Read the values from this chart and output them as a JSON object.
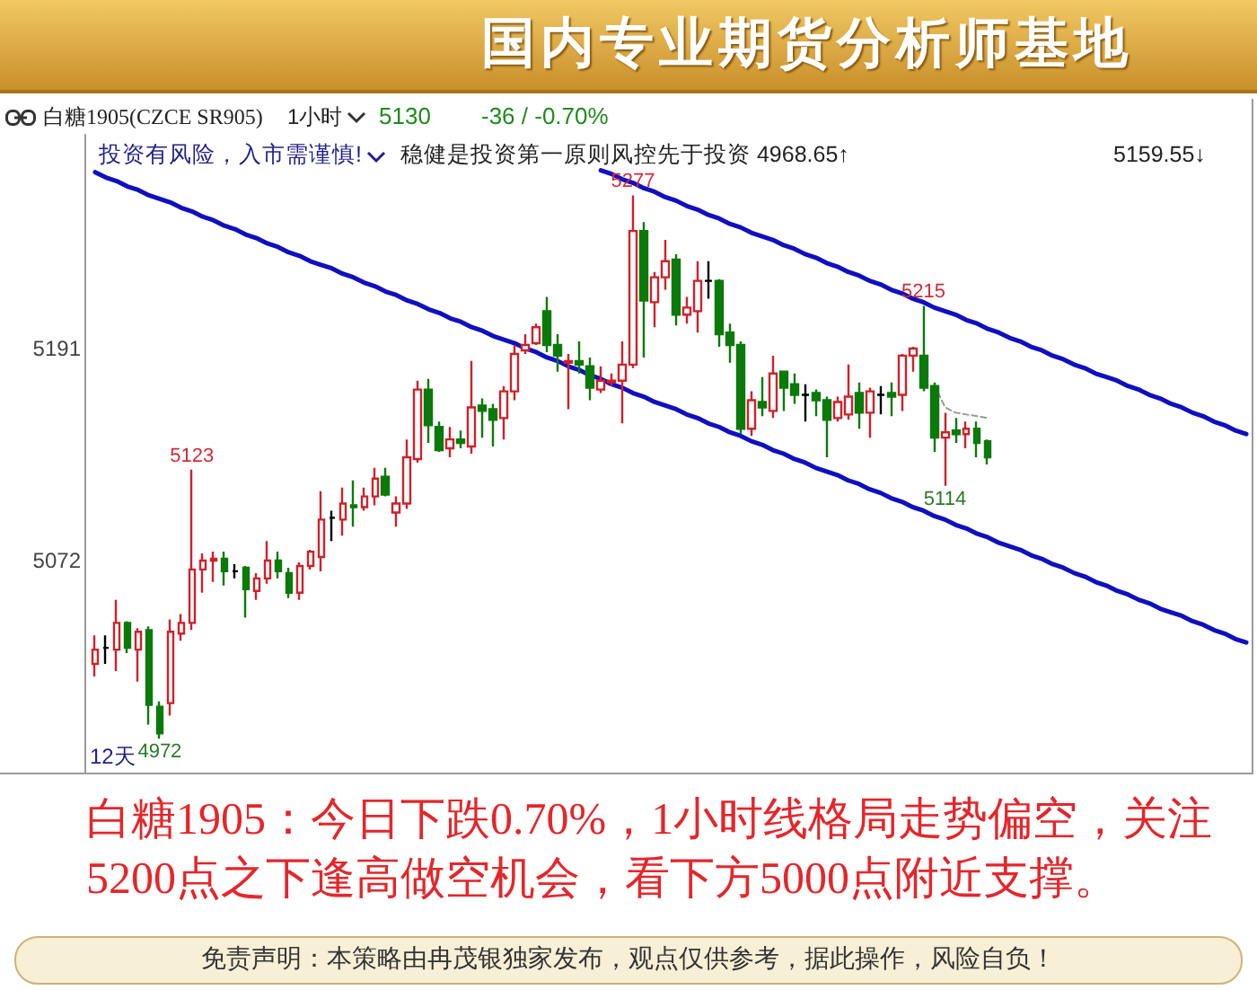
{
  "chart_data": {
    "type": "candlestick",
    "title": "白糖1905(CZCE SR905)",
    "categories": [
      null,
      null,
      null,
      null,
      null,
      null,
      null,
      null,
      null,
      null,
      null,
      null,
      null,
      null,
      null,
      null,
      null,
      null,
      null,
      null,
      null,
      null,
      null,
      null,
      null,
      null,
      null,
      null,
      null,
      null,
      null,
      null,
      null,
      null,
      null,
      null,
      null,
      null,
      null,
      null,
      null,
      null,
      null,
      null,
      null,
      null,
      null,
      null,
      null,
      null,
      null,
      null,
      null,
      null,
      null,
      null,
      null,
      null,
      null,
      null,
      null,
      null,
      null,
      null,
      null,
      null,
      null,
      null,
      null,
      null,
      null,
      null,
      null,
      null,
      null,
      null,
      null,
      null,
      null,
      null,
      null,
      null,
      null,
      null,
      null,
      null,
      null,
      null,
      null,
      null,
      null,
      null,
      null,
      null,
      null,
      null,
      null,
      null,
      null,
      null,
      null,
      null,
      null,
      null,
      null,
      null,
      null,
      null
    ],
    "ohlc": [
      [
        5014,
        5030,
        5007,
        5022
      ],
      [
        5023,
        5030,
        5014,
        5023
      ],
      [
        5022,
        5050,
        5010,
        5037
      ],
      [
        5037,
        5038,
        5020,
        5023
      ],
      [
        5022,
        5034,
        5004,
        5032
      ],
      [
        5033,
        5035,
        4980,
        4991
      ],
      [
        4990,
        4993,
        4972,
        4975
      ],
      [
        4992,
        5039,
        4985,
        5032
      ],
      [
        5031,
        5042,
        5027,
        5037
      ],
      [
        5037,
        5123,
        5033,
        5067
      ],
      [
        5067,
        5076,
        5054,
        5072
      ],
      [
        5072,
        5077,
        5060,
        5073
      ],
      [
        5073,
        5077,
        5058,
        5066
      ],
      [
        5066,
        5070,
        5062,
        5066
      ],
      [
        5068,
        5069,
        5040,
        5056
      ],
      [
        5055,
        5065,
        5050,
        5062
      ],
      [
        5062,
        5083,
        5059,
        5072
      ],
      [
        5072,
        5077,
        5062,
        5066
      ],
      [
        5065,
        5068,
        5051,
        5054
      ],
      [
        5054,
        5071,
        5050,
        5069
      ],
      [
        5069,
        5078,
        5067,
        5077
      ],
      [
        5074,
        5111,
        5066,
        5095
      ],
      [
        5096,
        5100,
        5083,
        5096
      ],
      [
        5095,
        5113,
        5086,
        5104
      ],
      [
        5103,
        5117,
        5091,
        5102
      ],
      [
        5102,
        5113,
        5100,
        5108
      ],
      [
        5108,
        5124,
        5103,
        5118
      ],
      [
        5119,
        5124,
        5108,
        5109
      ],
      [
        5099,
        5108,
        5091,
        5104
      ],
      [
        5104,
        5140,
        5101,
        5130
      ],
      [
        5129,
        5173,
        5127,
        5168
      ],
      [
        5168,
        5174,
        5138,
        5148
      ],
      [
        5147,
        5150,
        5133,
        5134
      ],
      [
        5135,
        5147,
        5130,
        5140
      ],
      [
        5140,
        5145,
        5135,
        5138
      ],
      [
        5136,
        5184,
        5132,
        5158
      ],
      [
        5159,
        5163,
        5141,
        5156
      ],
      [
        5157,
        5160,
        5136,
        5151
      ],
      [
        5152,
        5170,
        5140,
        5167
      ],
      [
        5167,
        5193,
        5162,
        5188
      ],
      [
        5190,
        5199,
        5188,
        5193
      ],
      [
        5194,
        5205,
        5193,
        5203
      ],
      [
        5212,
        5220,
        5189,
        5193
      ],
      [
        5193,
        5199,
        5178,
        5187
      ],
      [
        5183,
        5188,
        5157,
        5184
      ],
      [
        5184,
        5195,
        5177,
        5182
      ],
      [
        5181,
        5186,
        5162,
        5169
      ],
      [
        5168,
        5181,
        5166,
        5173
      ],
      [
        5172,
        5177,
        5170,
        5173
      ],
      [
        5173,
        5195,
        5149,
        5182
      ],
      [
        5182,
        5277,
        5180,
        5257
      ],
      [
        5257,
        5262,
        5186,
        5218
      ],
      [
        5217,
        5234,
        5203,
        5231
      ],
      [
        5231,
        5252,
        5224,
        5240
      ],
      [
        5241,
        5244,
        5204,
        5210
      ],
      [
        5210,
        5220,
        5205,
        5214
      ],
      [
        5212,
        5240,
        5200,
        5229
      ],
      [
        5229,
        5240,
        5219,
        5229
      ],
      [
        5229,
        5230,
        5192,
        5199
      ],
      [
        5200,
        5205,
        5183,
        5193
      ],
      [
        5193,
        5195,
        5143,
        5146
      ],
      [
        5146,
        5167,
        5142,
        5162
      ],
      [
        5161,
        5175,
        5153,
        5158
      ],
      [
        5156,
        5187,
        5152,
        5177
      ],
      [
        5178,
        5178,
        5156,
        5169
      ],
      [
        5171,
        5177,
        5160,
        5165
      ],
      [
        5165,
        5171,
        5150,
        5165
      ],
      [
        5166,
        5168,
        5153,
        5162
      ],
      [
        5162,
        5164,
        5130,
        5151
      ],
      [
        5152,
        5164,
        5150,
        5161
      ],
      [
        5154,
        5182,
        5151,
        5164
      ],
      [
        5166,
        5172,
        5146,
        5155
      ],
      [
        5155,
        5169,
        5141,
        5167
      ],
      [
        5165,
        5170,
        5154,
        5165
      ],
      [
        5166,
        5172,
        5153,
        5164
      ],
      [
        5165,
        5188,
        5156,
        5187
      ],
      [
        5187,
        5192,
        5178,
        5191
      ],
      [
        5187,
        5215,
        5167,
        5169
      ],
      [
        5170,
        5172,
        5133,
        5141
      ],
      [
        5141,
        5155,
        5114,
        5144
      ],
      [
        5145,
        5152,
        5138,
        5143
      ],
      [
        5143,
        5150,
        5135,
        5146
      ],
      [
        5146,
        5150,
        5130,
        5138
      ],
      [
        5139,
        5140,
        5126,
        5130
      ],
      null,
      null,
      null,
      null,
      null,
      null,
      null,
      null,
      null,
      null,
      null,
      null,
      null,
      null,
      null,
      null,
      null,
      null,
      null,
      null,
      null,
      null,
      null,
      null
    ],
    "colors": [
      "#d0202a",
      "#000000",
      "#d0202a",
      "#0a7a0a",
      "#d0202a",
      "#0a7a0a",
      "#0a7a0a",
      "#d0202a",
      "#d0202a",
      "#d0202a",
      "#d0202a",
      "#d0202a",
      "#0a7a0a",
      "#000000",
      "#0a7a0a",
      "#d0202a",
      "#d0202a",
      "#0a7a0a",
      "#0a7a0a",
      "#d0202a",
      "#d0202a",
      "#d0202a",
      "#000000",
      "#d0202a",
      "#0a7a0a",
      "#d0202a",
      "#d0202a",
      "#0a7a0a",
      "#d0202a",
      "#d0202a",
      "#d0202a",
      "#0a7a0a",
      "#0a7a0a",
      "#d0202a",
      "#0a7a0a",
      "#d0202a",
      "#0a7a0a",
      "#0a7a0a",
      "#d0202a",
      "#d0202a",
      "#d0202a",
      "#d0202a",
      "#0a7a0a",
      "#0a7a0a",
      "#d0202a",
      "#0a7a0a",
      "#0a7a0a",
      "#d0202a",
      "#d0202a",
      "#d0202a",
      "#d0202a",
      "#0a7a0a",
      "#d0202a",
      "#d0202a",
      "#0a7a0a",
      "#d0202a",
      "#d0202a",
      "#000000",
      "#0a7a0a",
      "#0a7a0a",
      "#0a7a0a",
      "#d0202a",
      "#0a7a0a",
      "#d0202a",
      "#0a7a0a",
      "#0a7a0a",
      "#000000",
      "#0a7a0a",
      "#0a7a0a",
      "#d0202a",
      "#d0202a",
      "#0a7a0a",
      "#d0202a",
      "#000000",
      "#0a7a0a",
      "#d0202a",
      "#d0202a",
      "#0a7a0a",
      "#0a7a0a",
      "#d0202a",
      "#0a7a0a",
      "#d0202a",
      "#0a7a0a",
      "#0a7a0a",
      null,
      null,
      null,
      null,
      null,
      null,
      null,
      null,
      null,
      null,
      null,
      null,
      null,
      null,
      null,
      null,
      null,
      null,
      null,
      null,
      null,
      null,
      null,
      null
    ],
    "series": [
      {
        "type": "line",
        "color": "#1010c0",
        "values": [
          5290,
          5287,
          5285,
          5282,
          5280,
          5277,
          5275,
          5273,
          5270,
          5268,
          5265,
          5263,
          5260,
          5258,
          5255,
          5253,
          5250,
          5248,
          5245,
          5243,
          5240,
          5238,
          5236,
          5233,
          5231,
          5228,
          5226,
          5223,
          5221,
          5218,
          5216,
          5213,
          5211,
          5208,
          5206,
          5203,
          5201,
          5198,
          5196,
          5194,
          5191,
          5189,
          5186,
          5184,
          5181,
          5179,
          5176,
          5174,
          5171,
          5169,
          5166,
          5164,
          5161,
          5159,
          5157,
          5154,
          5152,
          5149,
          5147,
          5144,
          5142,
          5139,
          5137,
          5134,
          5132,
          5129,
          5127,
          5124,
          5122,
          5120,
          5117,
          5115,
          5112,
          5110,
          5107,
          5105,
          5102,
          5100,
          5097,
          5095,
          5092,
          5090,
          5087,
          5085,
          5082,
          5080,
          5078,
          5075,
          5073,
          5070,
          5068,
          5065,
          5063,
          5060,
          5058,
          5055,
          5053,
          5050,
          5048,
          5045,
          5043,
          5041,
          5038,
          5036,
          5033,
          5031,
          5028,
          5026
        ]
      },
      {
        "type": "line",
        "color": "#1010c0",
        "values": [
          null,
          null,
          null,
          null,
          null,
          null,
          null,
          null,
          null,
          null,
          null,
          null,
          null,
          null,
          null,
          null,
          null,
          null,
          null,
          null,
          null,
          null,
          null,
          null,
          null,
          null,
          null,
          null,
          null,
          null,
          null,
          null,
          null,
          null,
          null,
          null,
          null,
          null,
          null,
          null,
          null,
          null,
          null,
          null,
          null,
          null,
          null,
          5291,
          5289,
          5286,
          5284,
          5281,
          5279,
          5276,
          5274,
          5271,
          5269,
          5266,
          5264,
          5261,
          5259,
          5256,
          5254,
          5252,
          5249,
          5247,
          5244,
          5242,
          5239,
          5237,
          5234,
          5232,
          5229,
          5227,
          5224,
          5222,
          5219,
          5217,
          5214,
          5212,
          5210,
          5207,
          5205,
          5202,
          5200,
          5197,
          5195,
          5192,
          5190,
          5187,
          5185,
          5182,
          5180,
          5177,
          5175,
          5173,
          5170,
          5168,
          5165,
          5163,
          5160,
          5158,
          5155,
          5153,
          5150,
          5148,
          5145,
          5143
        ]
      },
      {
        "type": "line",
        "color": "#999999",
        "line_style": "dashed",
        "values": [
          null,
          null,
          null,
          null,
          null,
          null,
          null,
          null,
          null,
          null,
          null,
          null,
          null,
          null,
          null,
          null,
          null,
          null,
          null,
          null,
          null,
          null,
          null,
          null,
          null,
          null,
          null,
          null,
          null,
          null,
          null,
          null,
          null,
          null,
          null,
          null,
          null,
          null,
          null,
          null,
          null,
          null,
          null,
          null,
          null,
          null,
          null,
          null,
          null,
          null,
          null,
          null,
          null,
          null,
          null,
          null,
          null,
          null,
          null,
          null,
          null,
          null,
          null,
          null,
          null,
          null,
          null,
          null,
          null,
          null,
          null,
          null,
          null,
          null,
          null,
          null,
          null,
          null,
          5171,
          5158,
          5155,
          5154,
          5153,
          5152,
          null,
          null,
          null,
          null,
          null,
          null,
          null,
          null,
          null,
          null,
          null,
          null,
          null,
          null,
          null,
          null,
          null,
          null,
          null,
          null,
          null,
          null,
          null,
          null
        ]
      }
    ],
    "ylim": [
      4953,
      5311
    ],
    "yticks": [
      5072,
      5191
    ],
    "tick_labels": "y",
    "annotations": [
      "国内专业期货分析师基地",
      "1小时",
      "5130",
      "-36 / -0.70%",
      "投资有风险，入市需谨慎!",
      "稳健是投资第一原则风控先于投资 4968.65↑",
      "5159.55↓",
      {
        "text": "5277",
        "y": 5277
      },
      {
        "text": "5215",
        "y": 5215
      },
      {
        "text": "5123",
        "y": 5123
      },
      {
        "text": "5114",
        "y": 5114
      },
      {
        "text": "4972",
        "y": 4972
      },
      "12天",
      "白糖1905：今日下跌0.70%，1小时线格局走势偏空，关注5200点之下逢高做空机会，看下方5000点附近支撑。",
      "免责声明：本策略由冉茂银独家发布，观点仅供参考，据此操作，风险自负！"
    ]
  }
}
